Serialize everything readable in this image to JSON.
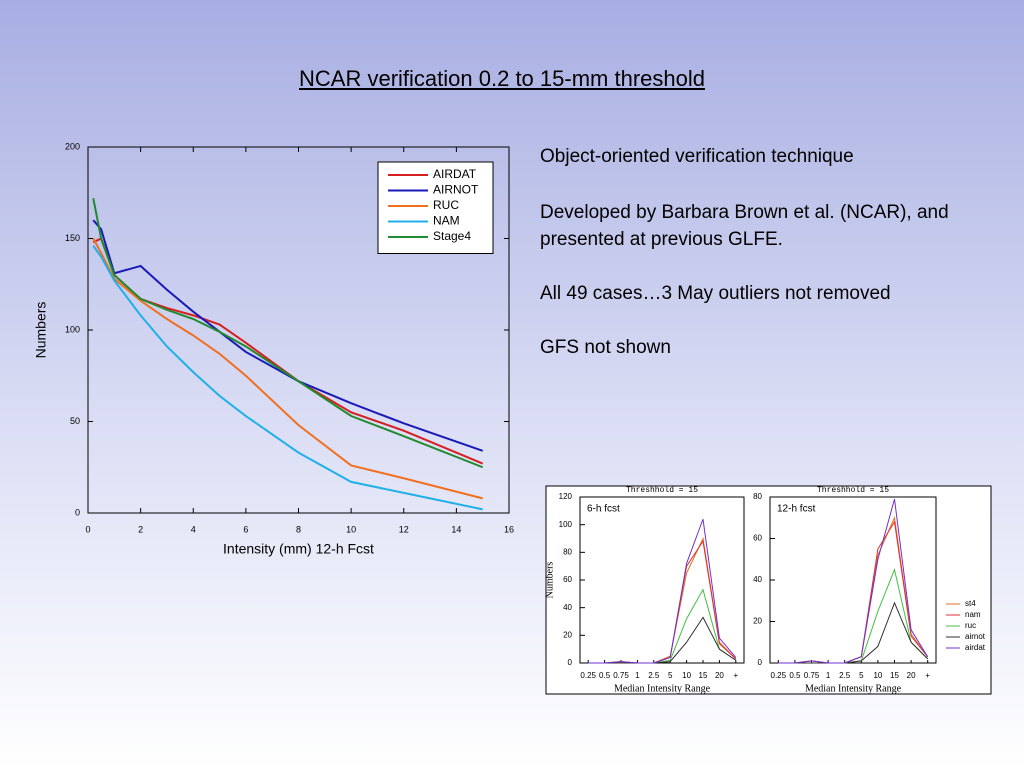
{
  "slide": {
    "title": "NCAR verification 0.2 to 15-mm threshold",
    "bullets": [
      "Object-oriented verification technique",
      "Developed by Barbara Brown et al. (NCAR), and presented at previous GLFE.",
      "All 49 cases…3 May outliers not removed",
      "GFS not shown"
    ]
  },
  "chart_data": [
    {
      "type": "line",
      "xlabel": "Intensity (mm) 12-h Fcst",
      "ylabel": "Numbers",
      "x": [
        0.2,
        0.5,
        1,
        2,
        3,
        4,
        5,
        6,
        8,
        10,
        12,
        15
      ],
      "xlim": [
        0,
        16
      ],
      "xticks": [
        0,
        2,
        4,
        6,
        8,
        10,
        12,
        14,
        16
      ],
      "ylim": [
        0,
        200
      ],
      "yticks": [
        0,
        50,
        100,
        150,
        200
      ],
      "legend": "upper right",
      "series": [
        {
          "name": "AIRDAT",
          "color": "#d42020",
          "values": [
            148,
            150,
            130,
            117,
            112,
            108,
            103,
            93,
            72,
            55,
            45,
            27
          ]
        },
        {
          "name": "AIRNOT",
          "color": "#1a1ab8",
          "values": [
            160,
            155,
            131,
            135,
            122,
            110,
            99,
            88,
            72,
            60,
            49,
            34
          ]
        },
        {
          "name": "RUC",
          "color": "#f07020",
          "values": [
            150,
            142,
            128,
            116,
            106,
            97,
            87,
            75,
            48,
            26,
            19,
            8
          ]
        },
        {
          "name": "NAM",
          "color": "#20b0e8",
          "values": [
            146,
            140,
            127,
            108,
            91,
            77,
            64,
            53,
            33,
            17,
            11,
            2
          ]
        },
        {
          "name": "Stage4",
          "color": "#208a30",
          "values": [
            172,
            150,
            130,
            117,
            111,
            106,
            99,
            91,
            72,
            53,
            42,
            25
          ]
        }
      ]
    },
    {
      "type": "line",
      "title": "Threshhold = 15",
      "annotation": "6-h fcst",
      "xlabel": "Median Intensity Range",
      "ylabel": "Numbers",
      "categories": [
        "0.25",
        "0.5",
        "0.75",
        "1",
        "2.5",
        "5",
        "10",
        "15",
        "20",
        "+"
      ],
      "ylim": [
        0,
        120
      ],
      "yticks": [
        0,
        20,
        40,
        60,
        80,
        100,
        120
      ],
      "series": [
        {
          "color": "#e07020",
          "values": [
            0,
            0,
            1,
            0,
            0,
            5,
            65,
            90,
            15,
            3
          ]
        },
        {
          "color": "#e03030",
          "values": [
            0,
            0,
            1,
            0,
            0,
            4,
            70,
            88,
            14,
            3
          ]
        },
        {
          "color": "#40c040",
          "values": [
            0,
            0,
            0,
            0,
            0,
            2,
            32,
            53,
            10,
            2
          ]
        },
        {
          "color": "#303030",
          "values": [
            0,
            0,
            0,
            0,
            0,
            1,
            15,
            33,
            10,
            2
          ]
        },
        {
          "color": "#7030d0",
          "values": [
            0,
            0,
            1,
            0,
            0,
            4,
            72,
            104,
            18,
            4
          ]
        }
      ]
    },
    {
      "type": "line",
      "title": "Threshhold = 15",
      "annotation": "12-h fcst",
      "xlabel": "Median Intensity Range",
      "categories": [
        "0.25",
        "0.5",
        "0.75",
        "1",
        "2.5",
        "5",
        "10",
        "15",
        "20",
        "+"
      ],
      "ylim": [
        0,
        80
      ],
      "yticks": [
        0,
        20,
        40,
        60,
        80
      ],
      "legend": "right",
      "series": [
        {
          "name": "st4",
          "color": "#e07020",
          "values": [
            0,
            0,
            1,
            0,
            0,
            3,
            52,
            70,
            14,
            3
          ]
        },
        {
          "name": "nam",
          "color": "#e03030",
          "values": [
            0,
            0,
            1,
            0,
            0,
            3,
            55,
            68,
            13,
            3
          ]
        },
        {
          "name": "ruc",
          "color": "#40c040",
          "values": [
            0,
            0,
            0,
            0,
            0,
            1,
            25,
            45,
            10,
            2
          ]
        },
        {
          "name": "airnot",
          "color": "#303030",
          "values": [
            0,
            0,
            0,
            0,
            0,
            1,
            8,
            29,
            10,
            2
          ]
        },
        {
          "name": "airdat",
          "color": "#7030d0",
          "values": [
            0,
            0,
            1,
            0,
            0,
            3,
            50,
            79,
            16,
            3
          ]
        }
      ]
    }
  ]
}
